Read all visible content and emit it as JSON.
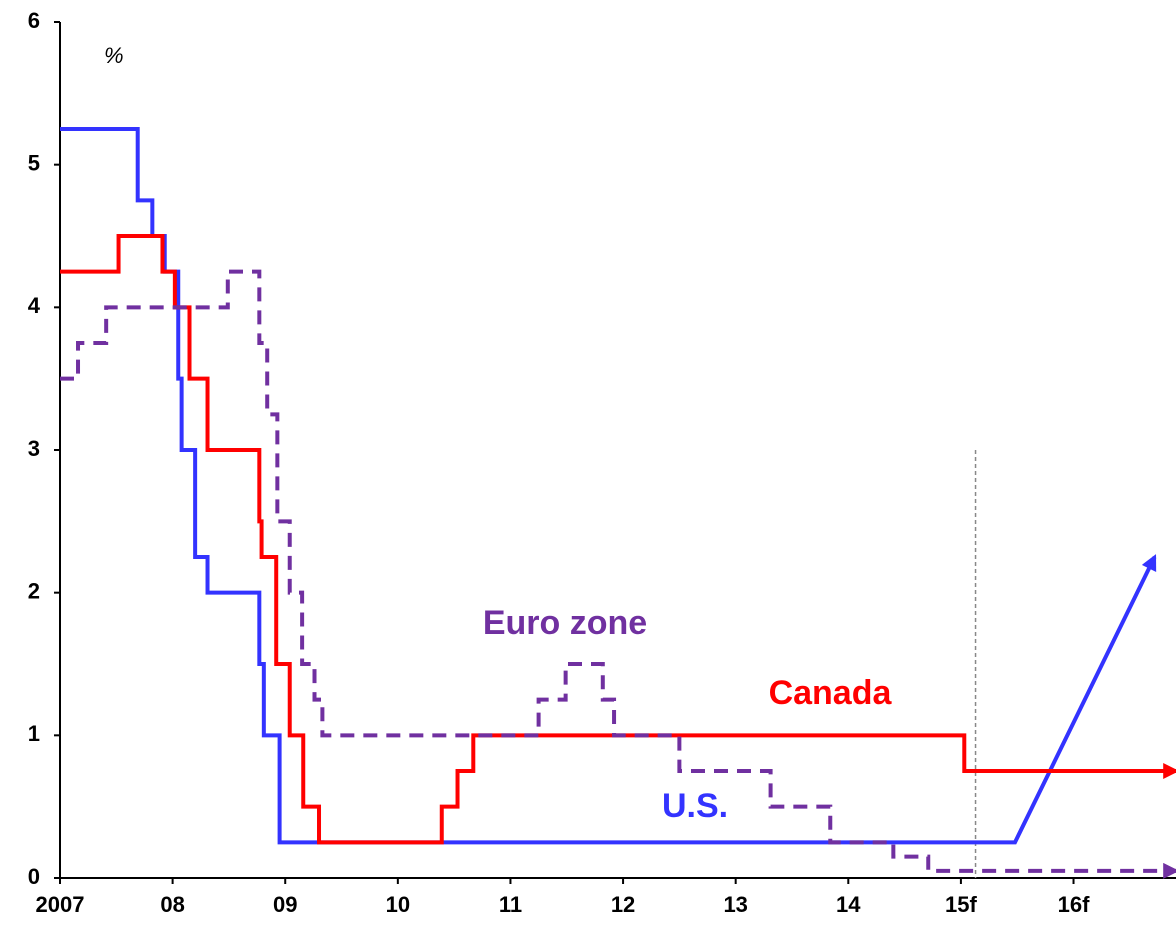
{
  "chart_data": {
    "type": "line",
    "step": true,
    "y_label": "%",
    "xlim": [
      2007,
      2016.91
    ],
    "ylim": [
      0,
      6
    ],
    "xticks": [
      2007,
      {
        "value": 2008,
        "label": "08"
      },
      {
        "value": 2009,
        "label": "09"
      },
      {
        "value": 2010,
        "label": "10"
      },
      {
        "value": 2011,
        "label": "11"
      },
      {
        "value": 2012,
        "label": "12"
      },
      {
        "value": 2013,
        "label": "13"
      },
      {
        "value": 2014,
        "label": "14"
      },
      {
        "value": 2015,
        "label": "15f"
      },
      {
        "value": 2016,
        "label": "16f"
      }
    ],
    "yticks": [
      0,
      1,
      2,
      3,
      4,
      5,
      6
    ],
    "forecast_start": 2015.13,
    "series": [
      {
        "name": "U.S.",
        "color": "#3333ff",
        "dashed": false,
        "x": [
          2007,
          2007.69,
          2007.69,
          2007.82,
          2007.82,
          2007.93,
          2007.93,
          2008.05,
          2008.05,
          2008.08,
          2008.08,
          2008.2,
          2008.2,
          2008.31,
          2008.31,
          2008.77,
          2008.77,
          2008.81,
          2008.81,
          2008.95,
          2008.95,
          2015.48,
          2016.72
        ],
        "values": [
          5.25,
          5.25,
          4.75,
          4.75,
          4.5,
          4.5,
          4.25,
          4.25,
          3.5,
          3.5,
          3.0,
          3.0,
          2.25,
          2.25,
          2.0,
          2.0,
          1.5,
          1.5,
          1.0,
          1.0,
          0.25,
          0.25,
          2.25
        ]
      },
      {
        "name": "Canada",
        "color": "#ff0000",
        "dashed": false,
        "x": [
          2007,
          2007.52,
          2007.52,
          2007.91,
          2007.91,
          2008.02,
          2008.02,
          2008.15,
          2008.15,
          2008.31,
          2008.31,
          2008.77,
          2008.77,
          2008.79,
          2008.79,
          2008.92,
          2008.92,
          2009.04,
          2009.04,
          2009.16,
          2009.16,
          2009.3,
          2009.3,
          2010.39,
          2010.39,
          2010.53,
          2010.53,
          2010.67,
          2010.67,
          2015.03,
          2015.03,
          2016.91
        ],
        "values": [
          4.25,
          4.25,
          4.5,
          4.5,
          4.25,
          4.25,
          4.0,
          4.0,
          3.5,
          3.5,
          3.0,
          3.0,
          2.5,
          2.5,
          2.25,
          2.25,
          1.5,
          1.5,
          1.0,
          1.0,
          0.5,
          0.5,
          0.25,
          0.25,
          0.5,
          0.5,
          0.75,
          0.75,
          1.0,
          1.0,
          0.75,
          0.75
        ]
      },
      {
        "name": "Euro zone",
        "color": "#7030a0",
        "dashed": true,
        "x": [
          2007,
          2007.16,
          2007.16,
          2007.41,
          2007.41,
          2008.49,
          2008.49,
          2008.77,
          2008.77,
          2008.84,
          2008.84,
          2008.93,
          2008.93,
          2009.04,
          2009.04,
          2009.15,
          2009.15,
          2009.26,
          2009.26,
          2009.33,
          2009.33,
          2011.25,
          2011.25,
          2011.49,
          2011.49,
          2011.82,
          2011.82,
          2011.92,
          2011.92,
          2012.5,
          2012.5,
          2013.31,
          2013.31,
          2013.84,
          2013.84,
          2014.4,
          2014.4,
          2014.71,
          2014.71,
          2016.91
        ],
        "values": [
          3.5,
          3.5,
          3.75,
          3.75,
          4.0,
          4.0,
          4.25,
          4.25,
          3.75,
          3.75,
          3.25,
          3.25,
          2.5,
          2.5,
          2.0,
          2.0,
          1.5,
          1.5,
          1.25,
          1.25,
          1.0,
          1.0,
          1.25,
          1.25,
          1.5,
          1.5,
          1.25,
          1.25,
          1.0,
          1.0,
          0.75,
          0.75,
          0.5,
          0.5,
          0.25,
          0.25,
          0.15,
          0.15,
          0.05,
          0.05
        ]
      }
    ]
  }
}
